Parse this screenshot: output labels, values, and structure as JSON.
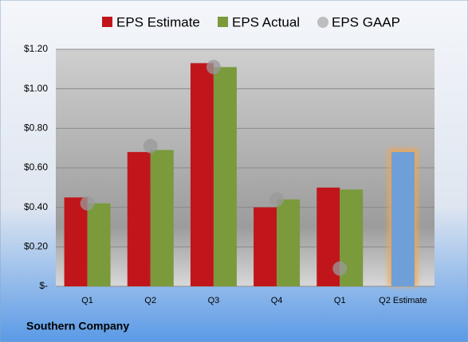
{
  "chart_data": {
    "type": "bar",
    "company": "Southern Company",
    "categories": [
      "Q1",
      "Q2",
      "Q3",
      "Q4",
      "Q1",
      "Q2 Estimate"
    ],
    "series": [
      {
        "name": "EPS Estimate",
        "color": "#c0161b",
        "values": [
          0.45,
          0.68,
          1.13,
          0.4,
          0.5,
          0.68
        ],
        "point_colors": [
          null,
          null,
          null,
          null,
          null,
          "#6f9fd8"
        ]
      },
      {
        "name": "EPS Actual",
        "color": "#7a9a3c",
        "values": [
          0.42,
          0.69,
          1.11,
          0.44,
          0.49,
          null
        ]
      },
      {
        "name": "EPS GAAP",
        "color": "#9a9a9a",
        "marker": "circle",
        "values": [
          0.42,
          0.71,
          1.11,
          0.44,
          0.09,
          null
        ]
      }
    ],
    "ylim": [
      0,
      1.2
    ],
    "yticks": [
      {
        "value": 0,
        "label": "$-"
      },
      {
        "value": 0.2,
        "label": "$0.20"
      },
      {
        "value": 0.4,
        "label": "$0.40"
      },
      {
        "value": 0.6,
        "label": "$0.60"
      },
      {
        "value": 0.8,
        "label": "$0.80"
      },
      {
        "value": 1.0,
        "label": "$1.00"
      },
      {
        "value": 1.2,
        "label": "$1.20"
      }
    ],
    "grid": true
  }
}
